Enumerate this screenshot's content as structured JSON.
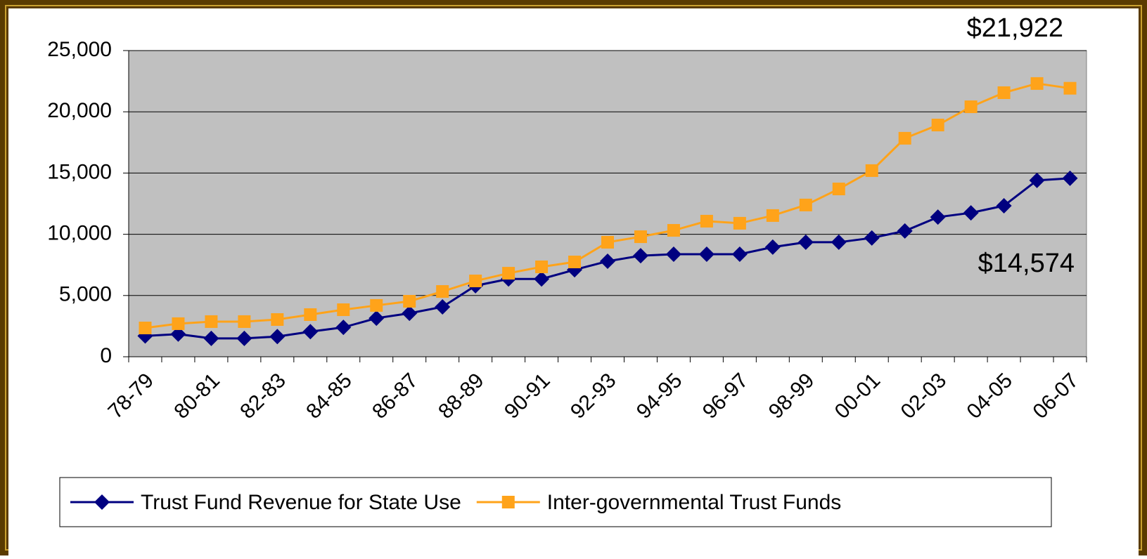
{
  "chart_data": {
    "type": "line",
    "categories": [
      "78-79",
      null,
      "80-81",
      null,
      "82-83",
      null,
      "84-85",
      null,
      "86-87",
      null,
      "88-89",
      null,
      "90-91",
      null,
      "92-93",
      null,
      "94-95",
      null,
      "96-97",
      null,
      "98-99",
      null,
      "00-01",
      null,
      "02-03",
      null,
      "04-05",
      null,
      "06-07"
    ],
    "series": [
      {
        "name": "Trust Fund Revenue for State Use",
        "color": "#000080",
        "marker": "diamond",
        "values": [
          1700,
          1850,
          1500,
          1500,
          1650,
          2050,
          2400,
          3150,
          3550,
          4070,
          5800,
          6350,
          6350,
          7100,
          7800,
          8250,
          8370,
          8370,
          8370,
          8950,
          9350,
          9350,
          9700,
          10270,
          11400,
          11750,
          12330,
          14400,
          14574
        ]
      },
      {
        "name": "Inter-governmental Trust Funds",
        "color": "#ffa31a",
        "marker": "square",
        "values": [
          2350,
          2700,
          2870,
          2870,
          3040,
          3440,
          3840,
          4190,
          4530,
          5330,
          6190,
          6820,
          7340,
          7740,
          9350,
          9800,
          10320,
          11070,
          10900,
          11530,
          12390,
          13700,
          15200,
          17840,
          18920,
          20410,
          21560,
          22310,
          21922
        ]
      }
    ],
    "annotations": [
      "$21,922",
      "$14,574"
    ],
    "ylim": [
      0,
      25000
    ],
    "yticks": [
      0,
      {
        "value": 5000,
        "label": "5,000"
      },
      {
        "value": 10000,
        "label": "10,000"
      },
      {
        "value": 15000,
        "label": "15,000"
      },
      {
        "value": 20000,
        "label": "20,000"
      },
      {
        "value": 25000,
        "label": "25,000"
      }
    ],
    "grid": true,
    "legend": "bottom"
  }
}
